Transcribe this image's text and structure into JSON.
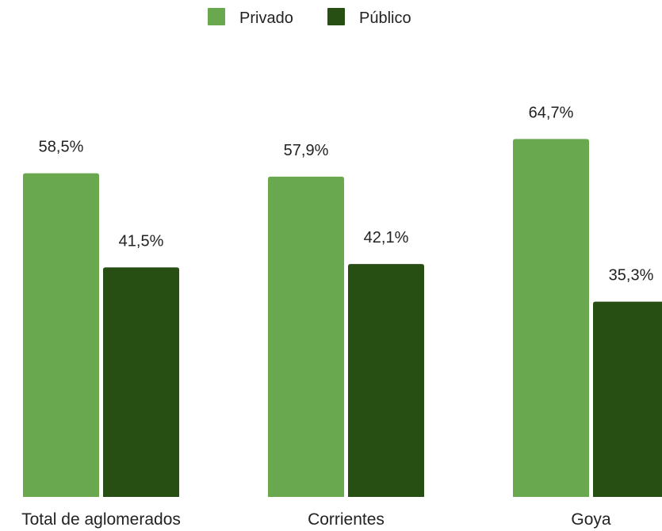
{
  "chart_data": {
    "type": "bar",
    "categories": [
      "Total de aglomerados",
      "Corrientes",
      "Goya"
    ],
    "series": [
      {
        "name": "Privado",
        "values": [
          58.5,
          57.9,
          64.7
        ],
        "labels": [
          "58,5%",
          "57,9%",
          "64,7%"
        ],
        "color": "#6aa84f"
      },
      {
        "name": "Público",
        "values": [
          41.5,
          42.1,
          35.3
        ],
        "labels": [
          "41,5%",
          "42,1%",
          "35,3%"
        ],
        "color": "#274e13"
      }
    ],
    "ylim": [
      0,
      100
    ],
    "grid": false,
    "legend_position": "top"
  }
}
